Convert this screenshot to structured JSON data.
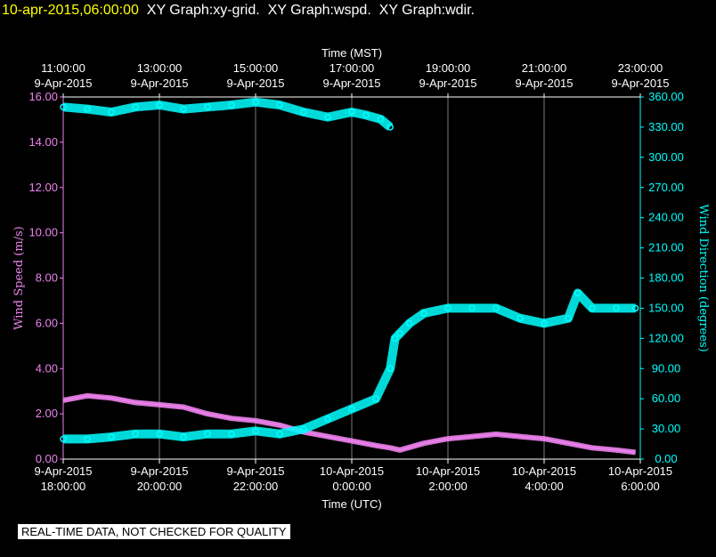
{
  "header": {
    "timestamp": "10-apr-2015,06:00:00",
    "graphs": [
      "XY Graph:xy-grid.",
      "XY Graph:wspd.",
      "XY Graph:wdir."
    ]
  },
  "notice": "REAL-TIME DATA, NOT CHECKED FOR QUALITY",
  "colors": {
    "speed": "#ee82ee",
    "direction": "#00ffff",
    "axis_left": "#ee82ee",
    "axis_right": "#00ffff",
    "grid": "#ffffff"
  },
  "chart_data": {
    "type": "line",
    "top_axis_label": "Time (MST)",
    "top_ticks": [
      {
        "time": "11:00:00",
        "date": "9-Apr-2015"
      },
      {
        "time": "13:00:00",
        "date": "9-Apr-2015"
      },
      {
        "time": "15:00:00",
        "date": "9-Apr-2015"
      },
      {
        "time": "17:00:00",
        "date": "9-Apr-2015"
      },
      {
        "time": "19:00:00",
        "date": "9-Apr-2015"
      },
      {
        "time": "21:00:00",
        "date": "9-Apr-2015"
      },
      {
        "time": "23:00:00",
        "date": "9-Apr-2015"
      }
    ],
    "xlabel": "Time (UTC)",
    "bottom_ticks": [
      {
        "date": "9-Apr-2015",
        "time": "18:00:00"
      },
      {
        "date": "9-Apr-2015",
        "time": "20:00:00"
      },
      {
        "date": "9-Apr-2015",
        "time": "22:00:00"
      },
      {
        "date": "10-Apr-2015",
        "time": "0:00:00"
      },
      {
        "date": "10-Apr-2015",
        "time": "2:00:00"
      },
      {
        "date": "10-Apr-2015",
        "time": "4:00:00"
      },
      {
        "date": "10-Apr-2015",
        "time": "6:00:00"
      }
    ],
    "xlim_utc_hours": [
      18,
      30
    ],
    "ylabel_left": "Wind Speed (m/s)",
    "ylim_left": [
      0,
      16
    ],
    "left_ticks": [
      "0.00",
      "2.00",
      "4.00",
      "6.00",
      "8.00",
      "10.00",
      "12.00",
      "14.00",
      "16.00"
    ],
    "ylabel_right": "Wind Direction (degrees)",
    "ylim_right": [
      0,
      360
    ],
    "right_ticks": [
      "0.00",
      "30.00",
      "60.00",
      "90.00",
      "120.00",
      "150.00",
      "180.00",
      "210.00",
      "240.00",
      "270.00",
      "300.00",
      "330.00",
      "360.00"
    ],
    "grid": "vertical",
    "series": [
      {
        "name": "wspd",
        "style": "line",
        "x": [
          18.0,
          18.5,
          19.0,
          19.5,
          20.0,
          20.5,
          21.0,
          21.5,
          22.0,
          22.5,
          23.0,
          23.5,
          24.0,
          24.5,
          24.8,
          25.0,
          25.5,
          26.0,
          26.5,
          27.0,
          27.5,
          28.0,
          28.5,
          29.0,
          29.5,
          29.9
        ],
        "y": [
          2.6,
          2.8,
          2.7,
          2.5,
          2.4,
          2.3,
          2.0,
          1.8,
          1.7,
          1.5,
          1.2,
          1.0,
          0.8,
          0.6,
          0.5,
          0.4,
          0.7,
          0.9,
          1.0,
          1.1,
          1.0,
          0.9,
          0.7,
          0.5,
          0.4,
          0.3
        ]
      },
      {
        "name": "wdir",
        "style": "scatter",
        "x": [
          18.0,
          18.5,
          19.0,
          19.5,
          20.0,
          20.5,
          21.0,
          21.5,
          22.0,
          22.5,
          23.0,
          23.5,
          24.0,
          24.5,
          24.8,
          24.9,
          25.0,
          25.2,
          25.5,
          26.0,
          26.5,
          27.0,
          27.5,
          28.0,
          28.5,
          28.7,
          29.0,
          29.5,
          29.9
        ],
        "y": [
          20,
          20,
          22,
          25,
          25,
          22,
          25,
          25,
          28,
          25,
          30,
          40,
          50,
          60,
          90,
          120,
          125,
          135,
          145,
          150,
          150,
          150,
          140,
          135,
          140,
          165,
          150,
          150,
          150
        ]
      },
      {
        "name": "wdir-high",
        "style": "scatter",
        "x": [
          18.0,
          18.5,
          19.0,
          19.5,
          20.0,
          20.5,
          21.0,
          21.5,
          22.0,
          22.5,
          23.0,
          23.5,
          24.0,
          24.3,
          24.6,
          24.8
        ],
        "y": [
          350,
          348,
          345,
          350,
          352,
          348,
          350,
          352,
          355,
          352,
          345,
          340,
          345,
          342,
          338,
          330
        ]
      }
    ]
  }
}
